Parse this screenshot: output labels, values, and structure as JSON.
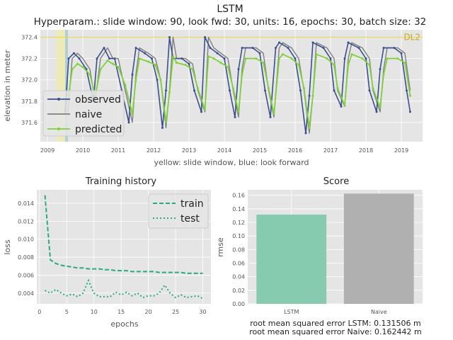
{
  "figure": {
    "title": "LSTM",
    "subtitle": "Hyperparam.: slide window: 90, look fwd: 30, units: 16, epochs: 30, batch size: 32"
  },
  "colors": {
    "observed": "#3a4f8c",
    "naive": "#7f7f7f",
    "predicted": "#7fd13b",
    "train": "#2aab7f",
    "bar_lstm": "#86cbb0",
    "bar_naive": "#b0b0b0",
    "dl2": "#e8d84a",
    "slide": "#f0ebb0",
    "lookfwd": "#a9cdd0"
  },
  "chart_data": [
    {
      "type": "line",
      "xlabel": "yellow: slide window, blue: look forward",
      "ylabel": "elevation in meter",
      "xlim": [
        2008.8,
        2019.6
      ],
      "ylim": [
        371.42,
        372.47
      ],
      "x_ticks": [
        2009,
        2010,
        2011,
        2012,
        2013,
        2014,
        2015,
        2016,
        2017,
        2018,
        2019
      ],
      "x_tick_labels": [
        "2009",
        "2010",
        "2011",
        "2012",
        "2013",
        "2014",
        "2015",
        "2016",
        "2017",
        "2018",
        "2019"
      ],
      "y_ticks": [
        371.6,
        371.8,
        372.0,
        372.2,
        372.4
      ],
      "y_tick_labels": [
        "371.6",
        "371.8",
        "372.0",
        "372.2",
        "372.4"
      ],
      "grid": true,
      "legend": "center-left",
      "reference_line": {
        "label": "DL2",
        "y": 372.4
      },
      "shaded_regions": [
        {
          "x0": 2009.25,
          "x1": 2009.5,
          "kind": "slide window"
        },
        {
          "x0": 2009.5,
          "x1": 2009.58,
          "kind": "look forward"
        }
      ],
      "series": [
        {
          "name": "observed",
          "x": [
            2009.5,
            2009.6,
            2009.75,
            2009.9,
            2010.1,
            2010.3,
            2010.4,
            2010.6,
            2010.75,
            2010.9,
            2011.1,
            2011.3,
            2011.4,
            2011.5,
            2011.75,
            2011.95,
            2012.1,
            2012.25,
            2012.35,
            2012.45,
            2012.55,
            2012.8,
            2013.0,
            2013.15,
            2013.35,
            2013.45,
            2013.6,
            2013.8,
            2014.0,
            2014.15,
            2014.3,
            2014.4,
            2014.5,
            2014.8,
            2015.0,
            2015.15,
            2015.3,
            2015.45,
            2015.55,
            2015.8,
            2016.0,
            2016.15,
            2016.3,
            2016.4,
            2016.5,
            2016.8,
            2017.0,
            2017.1,
            2017.3,
            2017.4,
            2017.5,
            2017.8,
            2018.0,
            2018.1,
            2018.3,
            2018.4,
            2018.5,
            2018.8,
            2019.0,
            2019.15,
            2019.25
          ],
          "values": [
            371.7,
            372.2,
            372.25,
            372.2,
            372.1,
            371.8,
            372.2,
            372.3,
            372.2,
            372.2,
            371.9,
            371.6,
            372.05,
            372.3,
            372.25,
            372.2,
            372.0,
            371.55,
            371.9,
            372.4,
            372.2,
            372.2,
            372.15,
            371.9,
            371.7,
            372.4,
            372.3,
            372.25,
            372.2,
            371.9,
            371.65,
            372.1,
            372.3,
            372.3,
            372.25,
            371.9,
            371.65,
            372.3,
            372.35,
            372.3,
            372.2,
            371.9,
            371.5,
            371.85,
            372.35,
            372.3,
            372.2,
            371.9,
            371.75,
            372.2,
            372.35,
            372.3,
            372.2,
            371.9,
            371.7,
            372.1,
            372.3,
            372.3,
            372.25,
            371.9,
            371.7
          ]
        },
        {
          "name": "naive",
          "x": [
            2009.58,
            2009.7,
            2009.85,
            2010.0,
            2010.2,
            2010.35,
            2010.5,
            2010.7,
            2010.85,
            2011.0,
            2011.2,
            2011.4,
            2011.5,
            2011.6,
            2011.85,
            2012.05,
            2012.2,
            2012.35,
            2012.45,
            2012.55,
            2012.65,
            2012.9,
            2013.1,
            2013.25,
            2013.45,
            2013.55,
            2013.7,
            2013.9,
            2014.1,
            2014.25,
            2014.4,
            2014.5,
            2014.6,
            2014.9,
            2015.1,
            2015.25,
            2015.4,
            2015.55,
            2015.65,
            2015.9,
            2016.1,
            2016.25,
            2016.4,
            2016.5,
            2016.6,
            2016.9,
            2017.1,
            2017.2,
            2017.4,
            2017.5,
            2017.6,
            2017.9,
            2018.1,
            2018.2,
            2018.4,
            2018.5,
            2018.6,
            2018.9,
            2019.1,
            2019.25
          ],
          "values": [
            371.7,
            372.2,
            372.25,
            372.2,
            372.1,
            371.8,
            372.2,
            372.3,
            372.2,
            372.2,
            371.9,
            371.6,
            372.05,
            372.3,
            372.25,
            372.2,
            372.0,
            371.55,
            371.9,
            372.4,
            372.2,
            372.2,
            372.15,
            371.9,
            371.7,
            372.4,
            372.3,
            372.25,
            372.2,
            371.9,
            371.65,
            372.1,
            372.3,
            372.3,
            372.25,
            371.9,
            371.65,
            372.3,
            372.35,
            372.3,
            372.2,
            371.9,
            371.5,
            371.85,
            372.35,
            372.3,
            372.2,
            371.9,
            371.75,
            372.2,
            372.35,
            372.3,
            372.2,
            371.9,
            371.7,
            372.1,
            372.3,
            372.3,
            372.25,
            371.9
          ]
        },
        {
          "name": "predicted",
          "x": [
            2009.58,
            2009.7,
            2009.85,
            2010.0,
            2010.2,
            2010.35,
            2010.5,
            2010.7,
            2010.85,
            2011.0,
            2011.2,
            2011.4,
            2011.5,
            2011.6,
            2011.85,
            2012.05,
            2012.2,
            2012.35,
            2012.45,
            2012.55,
            2012.65,
            2012.9,
            2013.1,
            2013.25,
            2013.45,
            2013.55,
            2013.7,
            2013.9,
            2014.1,
            2014.25,
            2014.4,
            2014.5,
            2014.6,
            2014.9,
            2015.1,
            2015.25,
            2015.4,
            2015.55,
            2015.65,
            2015.9,
            2016.1,
            2016.25,
            2016.4,
            2016.5,
            2016.6,
            2016.9,
            2017.1,
            2017.2,
            2017.4,
            2017.5,
            2017.6,
            2017.9,
            2018.1,
            2018.2,
            2018.4,
            2018.5,
            2018.6,
            2018.9,
            2019.1,
            2019.25
          ],
          "values": [
            371.8,
            372.1,
            372.15,
            372.12,
            372.05,
            371.85,
            372.1,
            372.18,
            372.15,
            372.12,
            371.95,
            371.68,
            372.0,
            372.2,
            372.17,
            372.14,
            372.0,
            371.6,
            371.88,
            372.22,
            372.16,
            372.14,
            372.1,
            371.92,
            371.72,
            372.22,
            372.2,
            372.16,
            372.12,
            371.92,
            371.7,
            372.05,
            372.2,
            372.2,
            372.16,
            371.92,
            371.68,
            372.2,
            372.24,
            372.2,
            372.14,
            371.92,
            371.55,
            371.85,
            372.24,
            372.2,
            372.14,
            371.92,
            371.76,
            372.14,
            372.24,
            372.2,
            372.14,
            371.92,
            371.74,
            372.05,
            372.2,
            372.2,
            372.16,
            371.85
          ]
        }
      ]
    },
    {
      "type": "line",
      "title": "Training history",
      "xlabel": "epochs",
      "ylabel": "loss",
      "xlim": [
        -0.5,
        31.5
      ],
      "ylim": [
        0.0028,
        0.0155
      ],
      "x_ticks": [
        0,
        5,
        10,
        15,
        20,
        25,
        30
      ],
      "x_tick_labels": [
        "0",
        "5",
        "10",
        "15",
        "20",
        "25",
        "30"
      ],
      "y_ticks": [
        0.004,
        0.006,
        0.008,
        0.01,
        0.012,
        0.014
      ],
      "y_tick_labels": [
        "0.004",
        "0.006",
        "0.008",
        "0.010",
        "0.012",
        "0.014"
      ],
      "grid": true,
      "legend": "top-right",
      "series": [
        {
          "name": "train",
          "x": [
            1,
            2,
            3,
            4,
            5,
            6,
            7,
            8,
            9,
            10,
            11,
            12,
            13,
            14,
            15,
            16,
            17,
            18,
            19,
            20,
            21,
            22,
            23,
            24,
            25,
            26,
            27,
            28,
            29,
            30
          ],
          "values": [
            0.0149,
            0.0077,
            0.0073,
            0.0071,
            0.007,
            0.0069,
            0.0068,
            0.0068,
            0.0067,
            0.0067,
            0.0067,
            0.0066,
            0.0066,
            0.0065,
            0.0065,
            0.0065,
            0.0064,
            0.0064,
            0.0064,
            0.0064,
            0.0064,
            0.0063,
            0.0063,
            0.0063,
            0.0063,
            0.0063,
            0.0062,
            0.0062,
            0.0062,
            0.0062
          ]
        },
        {
          "name": "test",
          "x": [
            1,
            2,
            3,
            4,
            5,
            6,
            7,
            8,
            9,
            10,
            11,
            12,
            13,
            14,
            15,
            16,
            17,
            18,
            19,
            20,
            21,
            22,
            23,
            24,
            25,
            26,
            27,
            28,
            29,
            30
          ],
          "values": [
            0.0043,
            0.004,
            0.0044,
            0.004,
            0.0037,
            0.0039,
            0.0036,
            0.004,
            0.0054,
            0.004,
            0.0036,
            0.0036,
            0.0036,
            0.0041,
            0.0038,
            0.0041,
            0.0037,
            0.004,
            0.0035,
            0.0037,
            0.0037,
            0.004,
            0.0049,
            0.004,
            0.0035,
            0.0038,
            0.0035,
            0.0036,
            0.0037,
            0.0034
          ]
        }
      ]
    },
    {
      "type": "bar",
      "title": "Score",
      "ylabel": "rmse",
      "categories": [
        "LSTM",
        "Naive"
      ],
      "values": [
        0.131506,
        0.162442
      ],
      "ylim": [
        0,
        0.168
      ],
      "y_ticks": [
        0.0,
        0.02,
        0.04,
        0.06,
        0.08,
        0.1,
        0.12,
        0.14,
        0.16
      ],
      "y_tick_labels": [
        "0.00",
        "0.02",
        "0.04",
        "0.06",
        "0.08",
        "0.10",
        "0.12",
        "0.14",
        "0.16"
      ],
      "grid": true,
      "notes": [
        "root mean squared error LSTM: 0.131506 m",
        "root mean squared error Naive: 0.162442 m"
      ]
    }
  ]
}
